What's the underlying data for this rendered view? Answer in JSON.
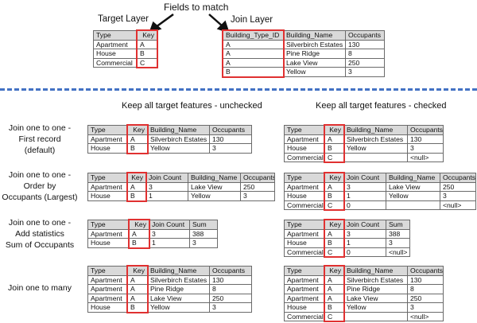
{
  "header": {
    "fields_to_match": "Fields to match",
    "target_layer_label": "Target Layer",
    "join_layer_label": "Join Layer"
  },
  "columns": {
    "unchecked_heading": "Keep all target features - unchecked",
    "checked_heading": "Keep all target features - checked"
  },
  "colors": {
    "key_highlight": "#e03131",
    "divider": "#4472c4",
    "header_fill": "#d9d9d9"
  },
  "rows_labels": [
    {
      "lines": [
        "Join one to one -",
        "First record",
        "(default)"
      ]
    },
    {
      "lines": [
        "Join one to one -",
        "Order by",
        "Occupants (Largest)"
      ]
    },
    {
      "lines": [
        "Join one to one -",
        "Add statistics",
        "Sum of Occupants"
      ]
    },
    {
      "lines": [
        "Join one to many"
      ]
    }
  ],
  "tables": {
    "target": {
      "headers": [
        "Type",
        "Key"
      ],
      "rows": [
        [
          "Apartment",
          "A"
        ],
        [
          "House",
          "B"
        ],
        [
          "Commercial",
          "C"
        ]
      ],
      "key_col": 1
    },
    "join": {
      "headers": [
        "Building_Type_ID",
        "Building_Name",
        "Occupants"
      ],
      "rows": [
        [
          "A",
          "Silverbirch Estates",
          "130"
        ],
        [
          "A",
          "Pine Ridge",
          "8"
        ],
        [
          "A",
          "Lake View",
          "250"
        ],
        [
          "B",
          "Yellow",
          "3"
        ]
      ],
      "key_col": 0
    },
    "first_unchecked": {
      "headers": [
        "Type",
        "Key",
        "Building_Name",
        "Occupants"
      ],
      "rows": [
        [
          "Apartment",
          "A",
          "Silverbirch Estates",
          "130"
        ],
        [
          "House",
          "B",
          "Yellow",
          "3"
        ]
      ],
      "key_col": 1
    },
    "first_checked": {
      "headers": [
        "Type",
        "Key",
        "Building_Name",
        "Occupants"
      ],
      "rows": [
        [
          "Apartment",
          "A",
          "Silverbirch Estates",
          "130"
        ],
        [
          "House",
          "B",
          "Yellow",
          "3"
        ],
        [
          "Commercial",
          "C",
          "",
          "<null>"
        ]
      ],
      "key_col": 1
    },
    "order_unchecked": {
      "headers": [
        "Type",
        "Key",
        "Join Count",
        "Building_Name",
        "Occupants"
      ],
      "rows": [
        [
          "Apartment",
          "A",
          "3",
          "Lake View",
          "250"
        ],
        [
          "House",
          "B",
          "1",
          "Yellow",
          "3"
        ]
      ],
      "key_col": 1
    },
    "order_checked": {
      "headers": [
        "Type",
        "Key",
        "Join Count",
        "Building_Name",
        "Occupants"
      ],
      "rows": [
        [
          "Apartment",
          "A",
          "3",
          "Lake View",
          "250"
        ],
        [
          "House",
          "B",
          "1",
          "Yellow",
          "3"
        ],
        [
          "Commercial",
          "C",
          "0",
          "",
          "<null>"
        ]
      ],
      "key_col": 1
    },
    "stats_unchecked": {
      "headers": [
        "Type",
        "Key",
        "Join Count",
        "Sum"
      ],
      "rows": [
        [
          "Apartment",
          "A",
          "3",
          "388"
        ],
        [
          "House",
          "B",
          "1",
          "3"
        ]
      ],
      "key_col": 1
    },
    "stats_checked": {
      "headers": [
        "Type",
        "Key",
        "Join Count",
        "Sum"
      ],
      "rows": [
        [
          "Apartment",
          "A",
          "3",
          "388"
        ],
        [
          "House",
          "B",
          "1",
          "3"
        ],
        [
          "Commercial",
          "C",
          "0",
          "<null>"
        ]
      ],
      "key_col": 1
    },
    "many_unchecked": {
      "headers": [
        "Type",
        "Key",
        "Building_Name",
        "Occupants"
      ],
      "rows": [
        [
          "Apartment",
          "A",
          "Silverbirch Estates",
          "130"
        ],
        [
          "Apartment",
          "A",
          "Pine Ridge",
          "8"
        ],
        [
          "Apartment",
          "A",
          "Lake View",
          "250"
        ],
        [
          "House",
          "B",
          "Yellow",
          "3"
        ]
      ],
      "key_col": 1
    },
    "many_checked": {
      "headers": [
        "Type",
        "Key",
        "Building_Name",
        "Occupants"
      ],
      "rows": [
        [
          "Apartment",
          "A",
          "Silverbirch Estates",
          "130"
        ],
        [
          "Apartment",
          "A",
          "Pine Ridge",
          "8"
        ],
        [
          "Apartment",
          "A",
          "Lake View",
          "250"
        ],
        [
          "House",
          "B",
          "Yellow",
          "3"
        ],
        [
          "Commercial",
          "C",
          "",
          "<null>"
        ]
      ],
      "key_col": 1
    }
  }
}
